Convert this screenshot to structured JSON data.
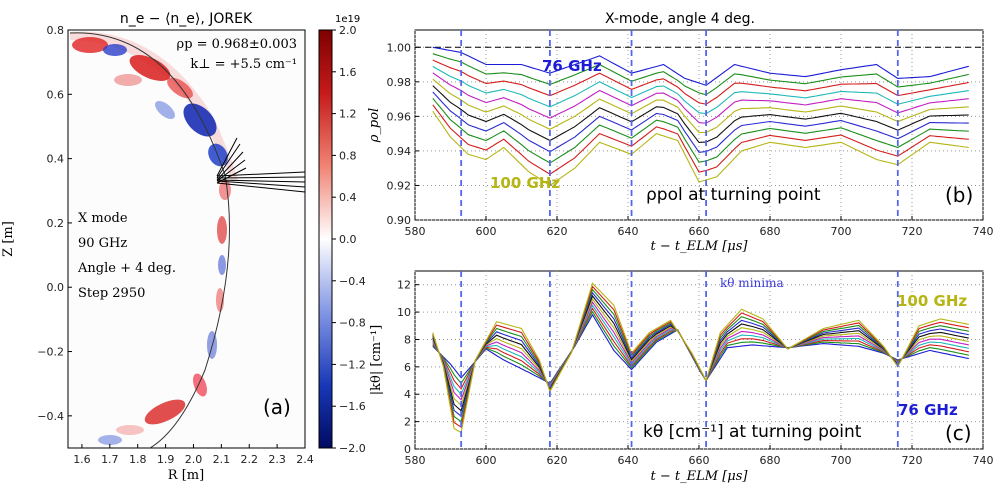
{
  "colors": {
    "blue_label": "#1c1cd6",
    "olive_label": "#b5b514",
    "marker": "#5566ee",
    "series": [
      "#2a2ad0",
      "#1a8f1a",
      "#d41d1d",
      "#1fb8b8",
      "#c21fc2",
      "#b5b514",
      "#111111"
    ]
  },
  "chart_data": [
    {
      "type": "heatmap",
      "title": "n_e − ⟨n_e⟩, JOREK",
      "xlabel": "R [m]",
      "ylabel": "Z [m]",
      "xlim": [
        1.55,
        2.4
      ],
      "ylim": [
        -0.5,
        0.8
      ],
      "x_ticks": [
        "1.6",
        "1.7",
        "1.8",
        "1.9",
        "2.0",
        "2.1",
        "2.2",
        "2.3",
        "2.4"
      ],
      "y_ticks": [
        "0.8",
        "0.6",
        "0.4",
        "0.2",
        "0.0",
        "−0.2",
        "−0.4"
      ],
      "colorbar": {
        "exponent": "1e19",
        "ticks": [
          "2.0",
          "1.6",
          "1.2",
          "0.8",
          "0.4",
          "0.0",
          "−0.4",
          "−0.8",
          "−1.2",
          "−1.6",
          "−2.0"
        ],
        "range": [
          -2.0,
          2.0
        ]
      },
      "annotations": {
        "rho": "ρp = 0.968±0.003",
        "kperp": "k⊥ = +5.5 cm⁻¹",
        "mode": "X mode",
        "freq": "90 GHz",
        "angle": "Angle + 4 deg.",
        "step": "Step 2950",
        "panel": "(a)"
      }
    },
    {
      "type": "line",
      "title": "X-mode, angle 4 deg.",
      "xlabel": "t − t_ELM [μs]",
      "ylabel": "ρ_pol",
      "xlim": [
        580,
        740
      ],
      "ylim": [
        0.9,
        1.01
      ],
      "x_ticks": [
        "580",
        "600",
        "620",
        "640",
        "660",
        "680",
        "700",
        "720",
        "740"
      ],
      "y_ticks": [
        "1.00",
        "0.98",
        "0.96",
        "0.94",
        "0.92",
        "0.90"
      ],
      "reference_line_y": 1.0,
      "vertical_markers": [
        593,
        618,
        641,
        662,
        716
      ],
      "series_count": 11,
      "first_series_76GHz": [
        [
          585,
          1.0
        ],
        [
          593,
          0.997
        ],
        [
          600,
          0.99
        ],
        [
          610,
          0.99
        ],
        [
          618,
          0.985
        ],
        [
          625,
          0.99
        ],
        [
          632,
          0.995
        ],
        [
          641,
          0.985
        ],
        [
          650,
          0.99
        ],
        [
          656,
          0.982
        ],
        [
          662,
          0.978
        ],
        [
          670,
          0.99
        ],
        [
          680,
          0.985
        ],
        [
          690,
          0.983
        ],
        [
          700,
          0.987
        ],
        [
          710,
          0.99
        ],
        [
          716,
          0.982
        ],
        [
          725,
          0.983
        ],
        [
          736,
          0.989
        ]
      ],
      "last_series_100GHz": [
        [
          585,
          0.963
        ],
        [
          590,
          0.948
        ],
        [
          595,
          0.938
        ],
        [
          600,
          0.935
        ],
        [
          605,
          0.942
        ],
        [
          612,
          0.928
        ],
        [
          618,
          0.92
        ],
        [
          625,
          0.93
        ],
        [
          632,
          0.945
        ],
        [
          641,
          0.938
        ],
        [
          648,
          0.95
        ],
        [
          654,
          0.946
        ],
        [
          660,
          0.922
        ],
        [
          665,
          0.925
        ],
        [
          672,
          0.94
        ],
        [
          680,
          0.945
        ],
        [
          690,
          0.942
        ],
        [
          700,
          0.945
        ],
        [
          710,
          0.935
        ],
        [
          716,
          0.932
        ],
        [
          725,
          0.945
        ],
        [
          736,
          0.942
        ]
      ],
      "annotations": {
        "label_top": "76 GHz",
        "label_bottom": "100 GHz",
        "caption": "ρpol at turning point",
        "panel": "(b)"
      }
    },
    {
      "type": "line",
      "xlabel": "t − t_ELM [μs]",
      "ylabel": "|kθ| [cm⁻¹]",
      "xlim": [
        580,
        740
      ],
      "ylim": [
        0,
        13
      ],
      "x_ticks": [
        "580",
        "600",
        "620",
        "640",
        "660",
        "680",
        "700",
        "720",
        "740"
      ],
      "y_ticks": [
        "12",
        "10",
        "8",
        "6",
        "4",
        "2",
        "0"
      ],
      "vertical_markers": [
        593,
        618,
        641,
        662,
        716
      ],
      "series_count": 11,
      "first_series_76GHz": [
        [
          585,
          7.5
        ],
        [
          590,
          6.2
        ],
        [
          593,
          5.2
        ],
        [
          600,
          7.3
        ],
        [
          605,
          6.5
        ],
        [
          612,
          5.6
        ],
        [
          618,
          4.8
        ],
        [
          625,
          7.5
        ],
        [
          630,
          9.8
        ],
        [
          636,
          7.2
        ],
        [
          641,
          5.8
        ],
        [
          648,
          7.8
        ],
        [
          654,
          8.7
        ],
        [
          660,
          5.8
        ],
        [
          662,
          5.0
        ],
        [
          668,
          7.4
        ],
        [
          675,
          7.6
        ],
        [
          685,
          7.4
        ],
        [
          695,
          7.7
        ],
        [
          705,
          7.5
        ],
        [
          712,
          7.0
        ],
        [
          716,
          6.5
        ],
        [
          725,
          7.2
        ],
        [
          736,
          6.6
        ]
      ],
      "last_series_100GHz": [
        [
          585,
          8.5
        ],
        [
          588,
          6.0
        ],
        [
          591,
          1.5
        ],
        [
          593,
          1.2
        ],
        [
          597,
          6.5
        ],
        [
          603,
          9.3
        ],
        [
          610,
          8.8
        ],
        [
          615,
          6.5
        ],
        [
          618,
          4.2
        ],
        [
          624,
          7.0
        ],
        [
          630,
          12.1
        ],
        [
          636,
          10.5
        ],
        [
          641,
          7.0
        ],
        [
          646,
          8.5
        ],
        [
          652,
          9.4
        ],
        [
          658,
          7.0
        ],
        [
          662,
          5.0
        ],
        [
          666,
          8.5
        ],
        [
          672,
          10.2
        ],
        [
          678,
          9.5
        ],
        [
          685,
          7.3
        ],
        [
          695,
          8.8
        ],
        [
          705,
          9.4
        ],
        [
          712,
          7.5
        ],
        [
          716,
          6.0
        ],
        [
          722,
          9.0
        ],
        [
          728,
          9.5
        ],
        [
          736,
          9.1
        ]
      ],
      "annotations": {
        "label_top": "100 GHz",
        "label_bottom": "76 GHz",
        "minima": "kθ minima",
        "caption": "kθ [cm⁻¹] at turning point",
        "panel": "(c)"
      }
    }
  ]
}
